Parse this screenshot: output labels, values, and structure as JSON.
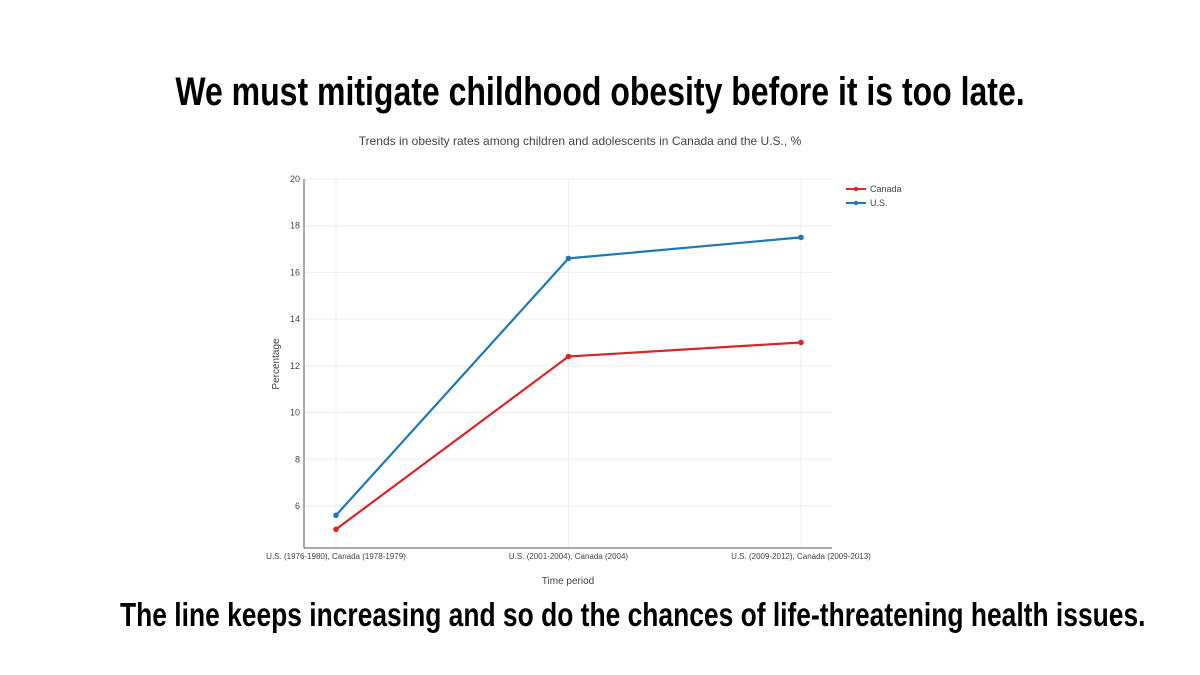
{
  "headline_top": "We must mitigate childhood obesity before it is too late.",
  "headline_bottom": "The line keeps increasing and so do the chances of life-threatening health issues.",
  "chart_data": {
    "type": "line",
    "title": "Trends in obesity rates among children and adolescents in Canada and the U.S., %",
    "xlabel": "Time period",
    "ylabel": "Percentage",
    "categories": [
      "U.S. (1976-1980), Canada (1978-1979)",
      "U.S. (2001-2004), Canada (2004)",
      "U.S. (2009-2012), Canada (2009-2013)"
    ],
    "series": [
      {
        "name": "Canada",
        "color": "#d62728",
        "values": [
          5.0,
          12.4,
          13.0
        ]
      },
      {
        "name": "U.S.",
        "color": "#1f77b4",
        "values": [
          5.6,
          16.6,
          17.5
        ]
      }
    ],
    "ylim": [
      4.2,
      20
    ],
    "yticks": [
      6,
      8,
      10,
      12,
      14,
      16,
      18,
      20
    ],
    "grid": true,
    "legend_position": "top-right"
  }
}
